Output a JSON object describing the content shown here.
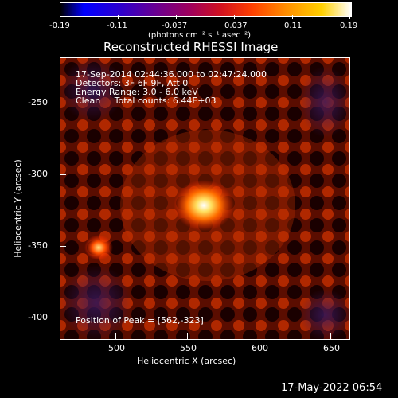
{
  "colorbar": {
    "tick_labels": [
      "-0.19",
      "-0.11",
      "-0.037",
      "0.037",
      "0.11",
      "0.19"
    ],
    "units": "(photons cm⁻² s⁻¹ asec⁻²)"
  },
  "title": "Reconstructed RHESSI Image",
  "info": {
    "line1": "17-Sep-2014 02:44:36.000 to 02:47:24.000",
    "line2": "Detectors: 3F 6F 9F, Att 0",
    "line3": "Energy Range: 3.0 - 6.0 keV",
    "line4": "Clean     Total counts: 6.44E+03",
    "peak": "Position of Peak = [562,-323]"
  },
  "axes": {
    "xlabel": "Heliocentric X (arcsec)",
    "ylabel": "Heliocentric Y (arcsec)",
    "xticks": [
      "500",
      "550",
      "600",
      "650"
    ],
    "yticks": [
      "-250",
      "-300",
      "-350",
      "-400"
    ]
  },
  "footer": "17-May-2022 06:54",
  "colors": {
    "background": "#000000",
    "foreground": "#ffffff"
  }
}
